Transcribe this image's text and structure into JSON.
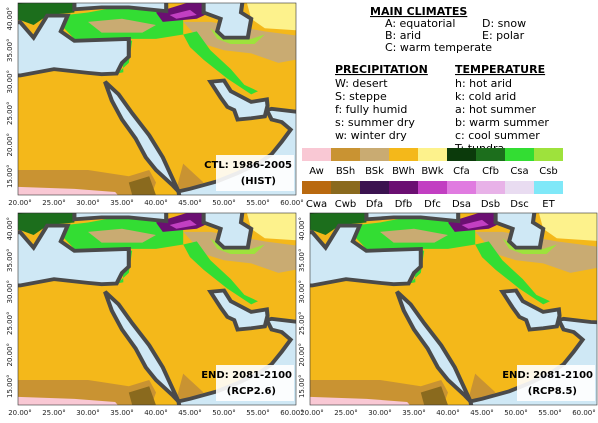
{
  "key": {
    "main_title": "MAIN CLIMATES",
    "main": [
      "A: equatorial",
      "B: arid",
      "C: warm temperate",
      "D: snow",
      "E: polar"
    ],
    "precip_title": "PRECIPITATION",
    "precip": [
      "W: desert",
      "S: steppe",
      "f: fully humid",
      "s: summer dry",
      "w: winter dry"
    ],
    "temp_title": "TEMPERATURE",
    "temp": [
      "h: hot arid",
      "k: cold arid",
      "a: hot summer",
      "b: warm summer",
      "c: cool summer",
      "T: tundra"
    ]
  },
  "legend": {
    "row1": [
      {
        "label": "Aw",
        "color": "#f9c8d4"
      },
      {
        "label": "BSh",
        "color": "#c99332"
      },
      {
        "label": "BSk",
        "color": "#c9ab72"
      },
      {
        "label": "BWh",
        "color": "#f4b81a"
      },
      {
        "label": "BWk",
        "color": "#fdf28c"
      },
      {
        "label": "Cfa",
        "color": "#0b3a0b"
      },
      {
        "label": "Cfb",
        "color": "#1c6e1c"
      },
      {
        "label": "Csa",
        "color": "#33dd33"
      },
      {
        "label": "Csb",
        "color": "#9ee23c"
      }
    ],
    "row2": [
      {
        "label": "Cwa",
        "color": "#b9690f"
      },
      {
        "label": "Cwb",
        "color": "#8a6a1e"
      },
      {
        "label": "Dfa",
        "color": "#3b1350"
      },
      {
        "label": "Dfb",
        "color": "#6b0f72"
      },
      {
        "label": "Dfc",
        "color": "#c23fc2"
      },
      {
        "label": "Dsa",
        "color": "#e07be0"
      },
      {
        "label": "Dsb",
        "color": "#e8b2e8"
      },
      {
        "label": "Dsc",
        "color": "#e9dcf1"
      },
      {
        "label": "ET",
        "color": "#7fe8f8"
      }
    ]
  },
  "panels": [
    {
      "line1": "CTL: 1986-2005",
      "line2": "(HIST)"
    },
    {
      "line1": "END: 2081-2100",
      "line2": "(RCP2.6)"
    },
    {
      "line1": "END: 2081-2100",
      "line2": "(RCP8.5)"
    }
  ],
  "lat_ticks": [
    "40.00°",
    "35.00°",
    "30.00°",
    "25.00°",
    "20.00°",
    "15.00°"
  ],
  "lon_ticks": [
    "20.00°",
    "25.00°",
    "30.00°",
    "35.00°",
    "40.00°",
    "45.00°",
    "50.00°",
    "55.00°",
    "60.00°"
  ]
}
